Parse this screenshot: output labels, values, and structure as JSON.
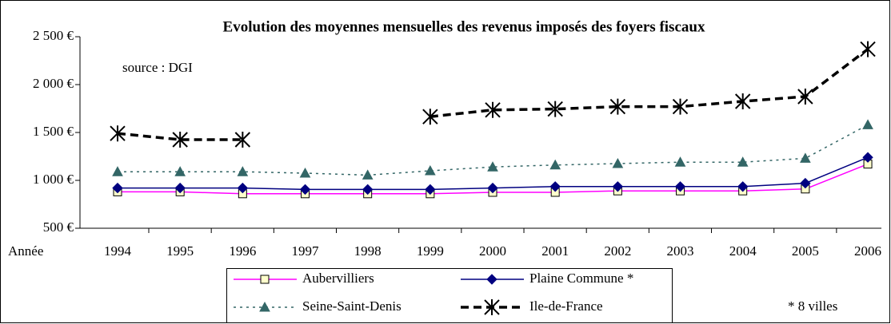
{
  "chart_data": {
    "type": "line",
    "title": "Evolution des moyennes mensuelles des revenus imposés des foyers fiscaux",
    "annotations": [
      "source : DGI",
      "* 8 villes"
    ],
    "xlabel": "Année",
    "categories": [
      "1994",
      "1995",
      "1996",
      "1997",
      "1998",
      "1999",
      "2000",
      "2001",
      "2002",
      "2003",
      "2004",
      "2005",
      "2006"
    ],
    "series": [
      {
        "name": "Aubervilliers",
        "color": "#ff00ff",
        "marker": "square",
        "marker_fill": "#ffffcc",
        "dash": "solid",
        "values": [
          880,
          880,
          860,
          860,
          860,
          860,
          875,
          875,
          890,
          890,
          890,
          910,
          1170
        ]
      },
      {
        "name": "Plaine Commune *",
        "color": "#000080",
        "marker": "diamond",
        "marker_fill": "#000080",
        "dash": "solid",
        "values": [
          920,
          920,
          920,
          905,
          905,
          905,
          920,
          935,
          935,
          935,
          935,
          970,
          1240
        ]
      },
      {
        "name": "Seine-Saint-Denis",
        "color": "#336666",
        "marker": "triangle",
        "marker_fill": "#336666",
        "dash": "dotted",
        "values": [
          1090,
          1090,
          1090,
          1075,
          1055,
          1100,
          1140,
          1160,
          1175,
          1190,
          1190,
          1230,
          1580
        ]
      },
      {
        "name": "Ile-de-France",
        "color": "#000000",
        "marker": "star",
        "marker_fill": "#000000",
        "dash": "dashed",
        "values": [
          1490,
          1425,
          1425,
          null,
          null,
          1665,
          1735,
          1745,
          1770,
          1770,
          1825,
          1875,
          2370
        ]
      }
    ],
    "ylim": [
      500,
      2500
    ],
    "yticks": [
      {
        "value": 500,
        "label": "500 €"
      },
      {
        "value": 1000,
        "label": "1 000 €"
      },
      {
        "value": 1500,
        "label": "1 500 €"
      },
      {
        "value": 2000,
        "label": "2 000 €"
      },
      {
        "value": 2500,
        "label": "2 500 €"
      }
    ],
    "grid": false,
    "legend": "bottom"
  }
}
